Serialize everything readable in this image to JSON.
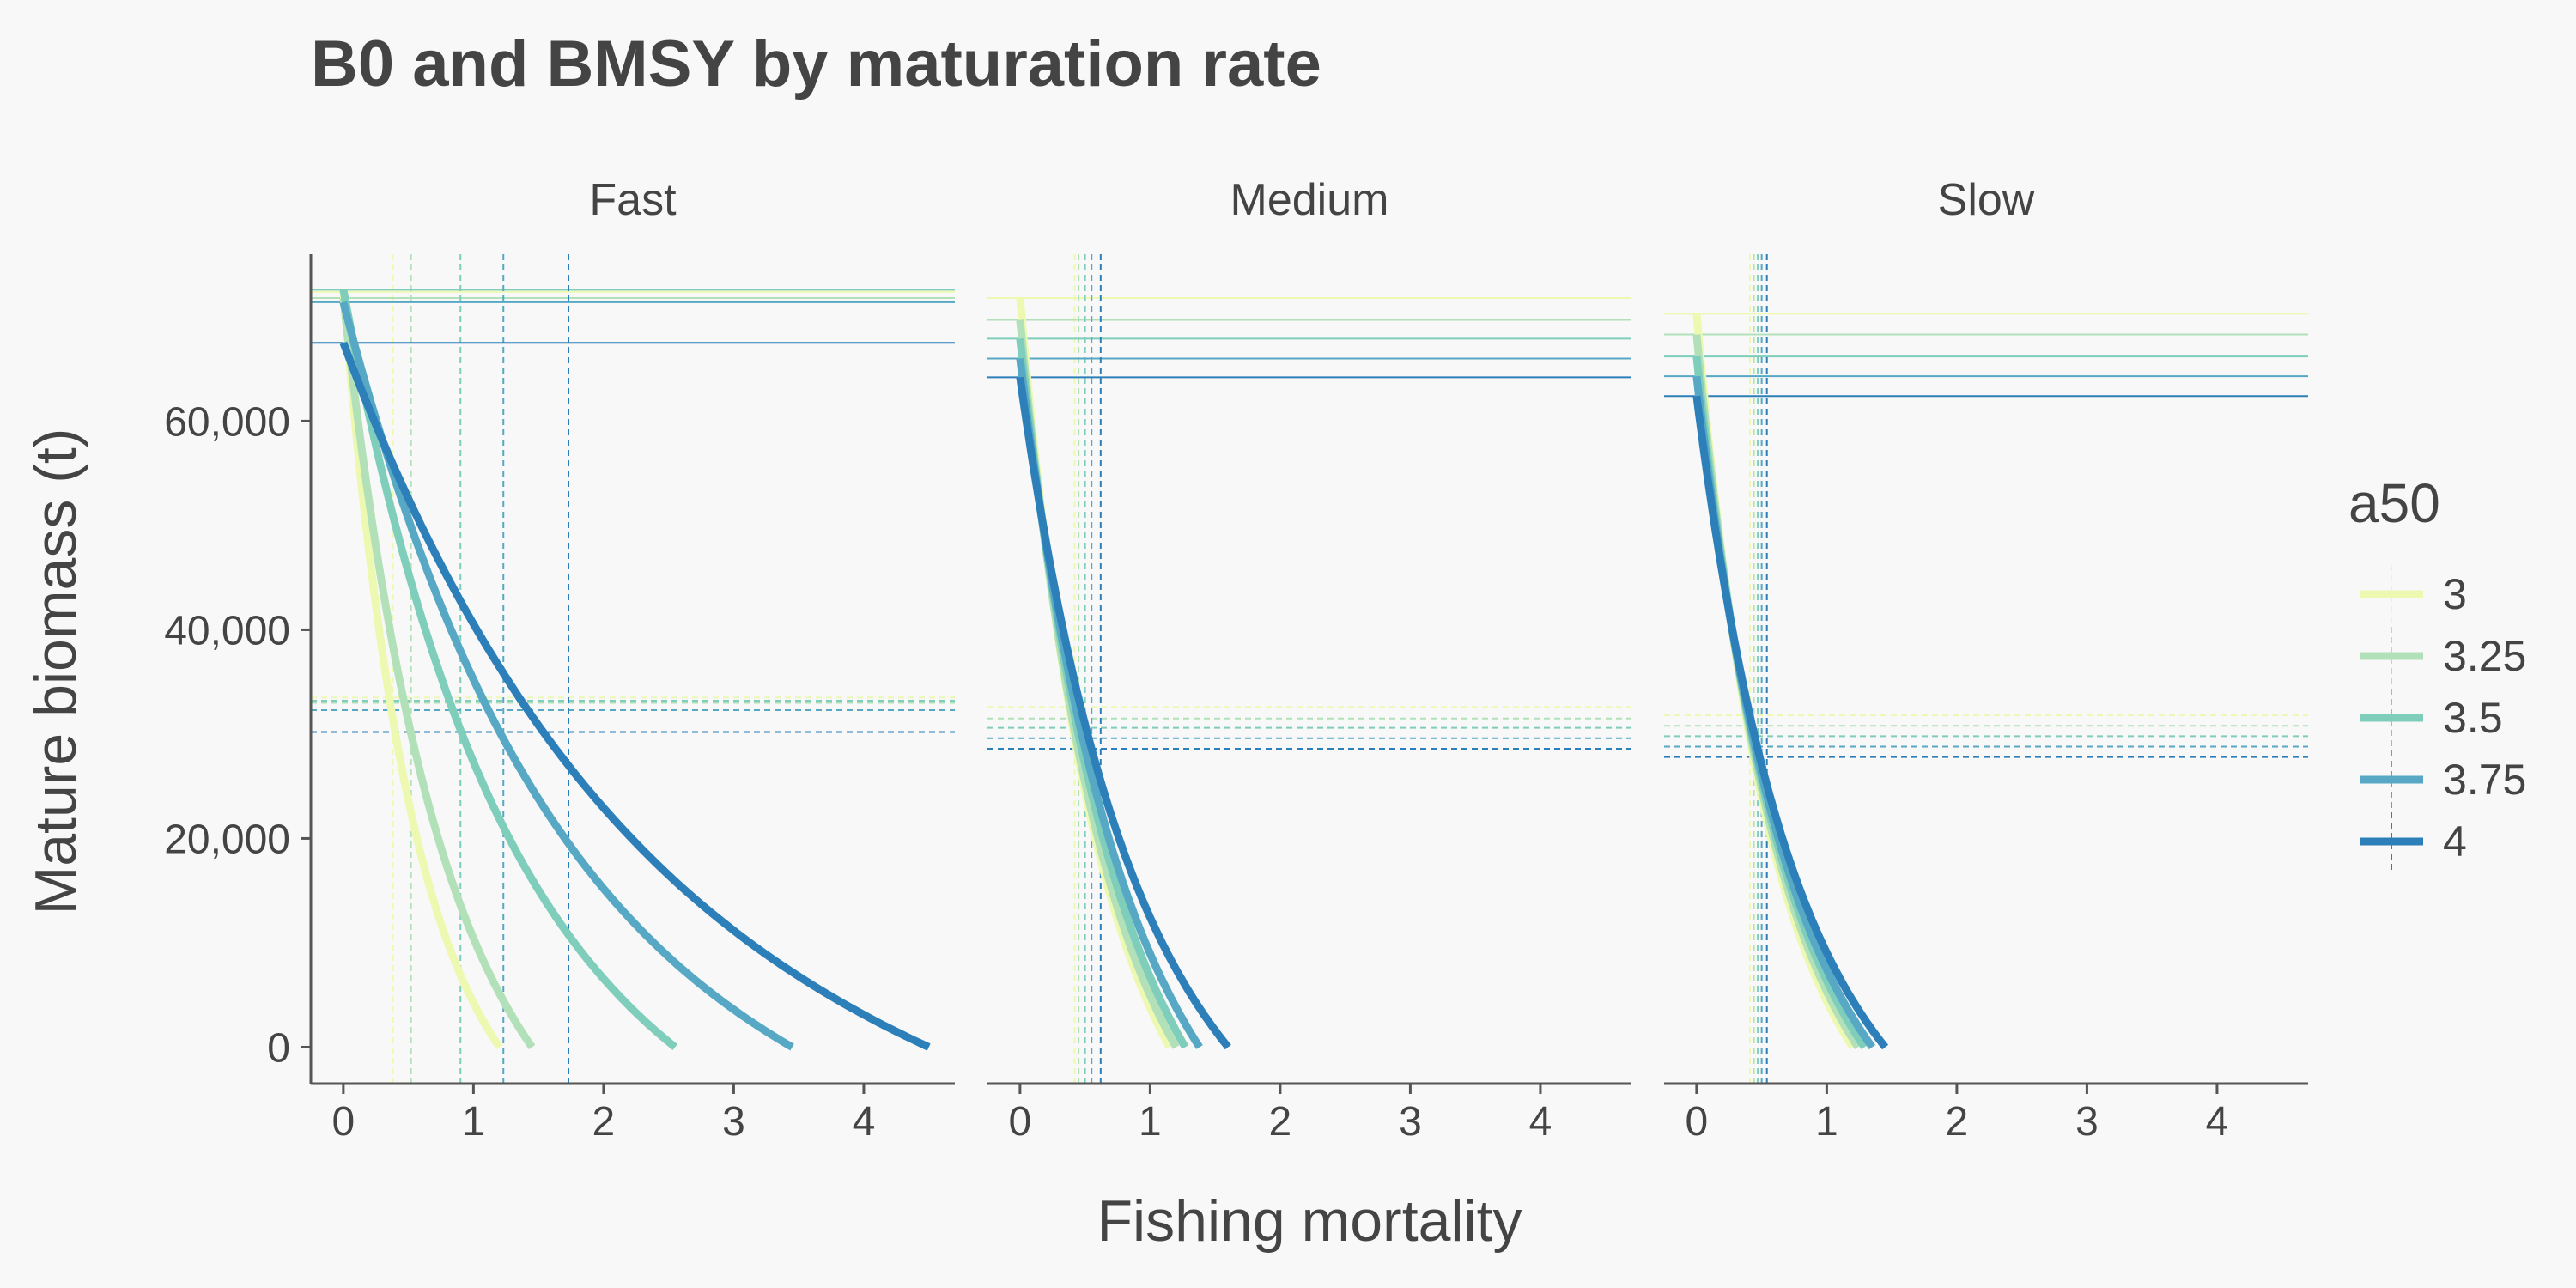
{
  "chart_data": {
    "type": "line",
    "title": "B0 and BMSY by maturation rate",
    "xlabel": "Fishing mortality",
    "ylabel": "Mature biomass (t)",
    "xlim": [
      -0.25,
      4.7
    ],
    "ylim": [
      -3500,
      76000
    ],
    "x_ticks": [
      0,
      1,
      2,
      3,
      4
    ],
    "x_tick_labels": [
      "0",
      "1",
      "2",
      "3",
      "4"
    ],
    "y_ticks": [
      0,
      20000,
      40000,
      60000
    ],
    "y_tick_labels": [
      "0",
      "20,000",
      "40,000",
      "60,000"
    ],
    "grid": false,
    "legend": {
      "title": "a50",
      "position": "right",
      "labels": [
        "3",
        "3.25",
        "3.5",
        "3.75",
        "4"
      ]
    },
    "colors": {
      "3": "#edf8b1",
      "3.25": "#b2e0b8",
      "3.5": "#7fcdbb",
      "3.75": "#56a8c4",
      "4": "#2c7fb8"
    },
    "panels": [
      {
        "name": "Fast",
        "series": [
          {
            "a50": "3",
            "color": "#edf8b1",
            "B0": 72400,
            "F_max": 1.2,
            "Fmsy": 0.38,
            "Bmsy": 33500
          },
          {
            "a50": "3.25",
            "color": "#b2e0b8",
            "B0": 71800,
            "F_max": 1.45,
            "Fmsy": 0.52,
            "Bmsy": 33000
          },
          {
            "a50": "3.5",
            "color": "#7fcdbb",
            "B0": 72600,
            "F_max": 2.55,
            "Fmsy": 0.9,
            "Bmsy": 33200
          },
          {
            "a50": "3.75",
            "color": "#56a8c4",
            "B0": 71400,
            "F_max": 3.45,
            "Fmsy": 1.23,
            "Bmsy": 32300
          },
          {
            "a50": "4",
            "color": "#2c7fb8",
            "B0": 67500,
            "F_max": 4.5,
            "Fmsy": 1.73,
            "Bmsy": 30200
          }
        ]
      },
      {
        "name": "Medium",
        "series": [
          {
            "a50": "3",
            "color": "#edf8b1",
            "B0": 71800,
            "F_max": 1.15,
            "Fmsy": 0.42,
            "Bmsy": 32600
          },
          {
            "a50": "3.25",
            "color": "#b2e0b8",
            "B0": 69700,
            "F_max": 1.2,
            "Fmsy": 0.45,
            "Bmsy": 31500
          },
          {
            "a50": "3.5",
            "color": "#7fcdbb",
            "B0": 67900,
            "F_max": 1.27,
            "Fmsy": 0.5,
            "Bmsy": 30600
          },
          {
            "a50": "3.75",
            "color": "#56a8c4",
            "B0": 66000,
            "F_max": 1.38,
            "Fmsy": 0.55,
            "Bmsy": 29600
          },
          {
            "a50": "4",
            "color": "#2c7fb8",
            "B0": 64200,
            "F_max": 1.6,
            "Fmsy": 0.62,
            "Bmsy": 28600
          }
        ]
      },
      {
        "name": "Slow",
        "series": [
          {
            "a50": "3",
            "color": "#edf8b1",
            "B0": 70300,
            "F_max": 1.2,
            "Fmsy": 0.41,
            "Bmsy": 31800
          },
          {
            "a50": "3.25",
            "color": "#b2e0b8",
            "B0": 68300,
            "F_max": 1.24,
            "Fmsy": 0.44,
            "Bmsy": 30800
          },
          {
            "a50": "3.5",
            "color": "#7fcdbb",
            "B0": 66200,
            "F_max": 1.29,
            "Fmsy": 0.47,
            "Bmsy": 29800
          },
          {
            "a50": "3.75",
            "color": "#56a8c4",
            "B0": 64300,
            "F_max": 1.35,
            "Fmsy": 0.5,
            "Bmsy": 28800
          },
          {
            "a50": "4",
            "color": "#2c7fb8",
            "B0": 62400,
            "F_max": 1.45,
            "Fmsy": 0.54,
            "Bmsy": 27800
          }
        ]
      }
    ]
  }
}
